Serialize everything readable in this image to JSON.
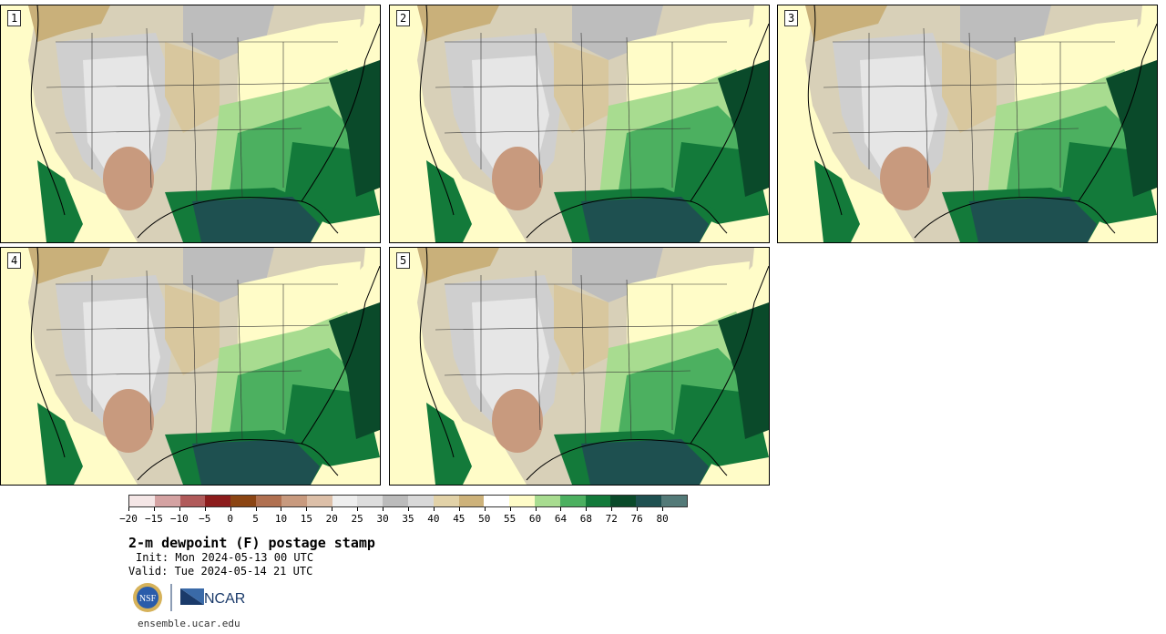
{
  "panels": [
    {
      "label": "1"
    },
    {
      "label": "2"
    },
    {
      "label": "3"
    },
    {
      "label": "4"
    },
    {
      "label": "5"
    }
  ],
  "colorbar": {
    "colors": [
      "#f4e6e6",
      "#d4a2a2",
      "#b05a5a",
      "#8c1c1c",
      "#8b4513",
      "#b07050",
      "#c89a7e",
      "#dcbfa8",
      "#eeeeee",
      "#dddddd",
      "#bbbbbb",
      "#d8d8d8",
      "#e2d2a8",
      "#cdb27a",
      "#ffffff",
      "#fffcc8",
      "#a8dc90",
      "#4cb060",
      "#137a3a",
      "#0a4a2a",
      "#1e5050",
      "#537a78"
    ],
    "ticks": [
      "−20",
      "−15",
      "−10",
      "−5",
      "0",
      "5",
      "10",
      "15",
      "20",
      "25",
      "30",
      "35",
      "40",
      "45",
      "50",
      "55",
      "60",
      "64",
      "68",
      "72",
      "76",
      "80"
    ]
  },
  "title": "2-m dewpoint (F) postage stamp",
  "init_text": "Init: Mon 2024-05-13 00 UTC",
  "valid_text": "Valid: Tue 2024-05-14 21 UTC",
  "logos": {
    "nsf": "NSF",
    "ncar": "NCAR"
  },
  "site": "ensemble.ucar.edu"
}
